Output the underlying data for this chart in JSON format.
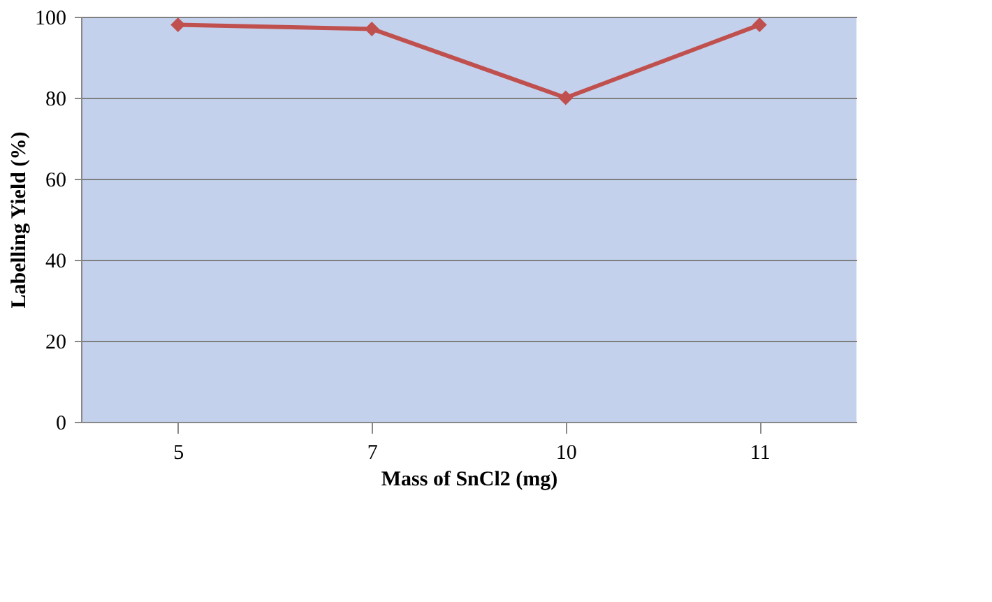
{
  "chart_data": {
    "type": "line",
    "xlabel": "Mass of SnCl2 (mg)",
    "ylabel": "Labelling Yield (%)",
    "categories": [
      "5",
      "7",
      "10",
      "11"
    ],
    "series": [
      {
        "color": "#c0504d",
        "values": [
          98,
          97,
          80,
          98
        ]
      }
    ],
    "ylim": [
      0,
      100
    ],
    "yticks": [
      0,
      20,
      40,
      60,
      80,
      100
    ],
    "grid": "y",
    "marker": "diamond",
    "line_style": "solid"
  }
}
